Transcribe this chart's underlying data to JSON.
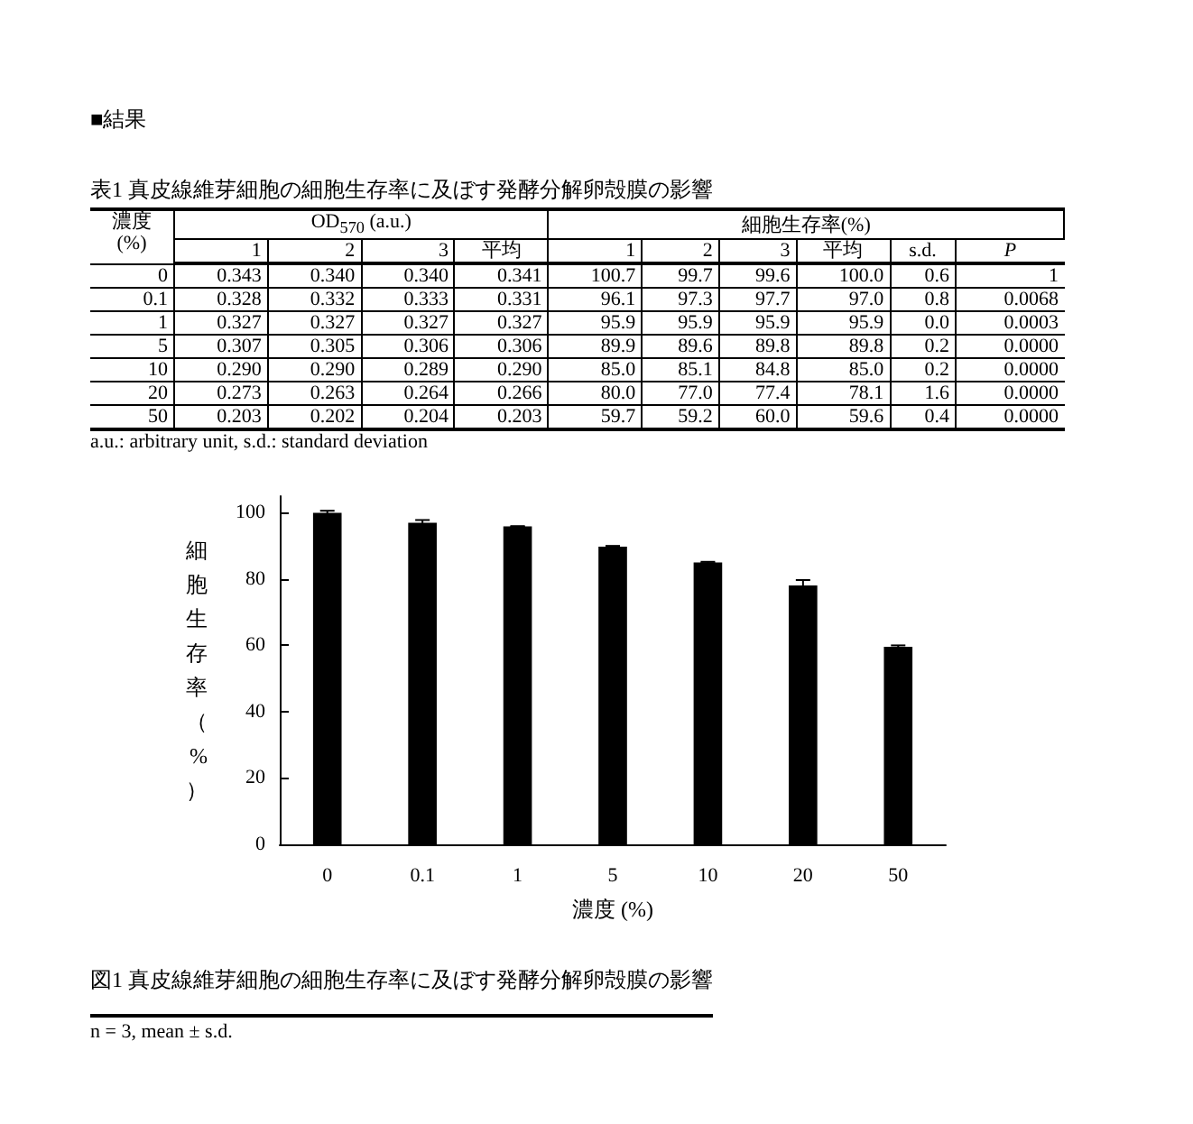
{
  "chart_data": [
    {
      "type": "other",
      "subtitle": "■結果",
      "title": "表1  真皮線維芽細胞の細胞生存率に及ぼす発酵分解卵殻膜の影響",
      "ylabel": "濃度\n(%)",
      "categories": [
        "1",
        "2",
        "3",
        "平均",
        "1",
        "2",
        "3",
        "平均",
        "s.d.",
        "P"
      ],
      "y_categories": [
        "0",
        "0.1",
        "1",
        "5",
        "10",
        "20",
        "50"
      ],
      "cell_labels": [
        [
          "0.343",
          "0.340",
          "0.340",
          "0.341",
          "100.7",
          "99.7",
          "99.6",
          "100.0",
          "0.6",
          "1"
        ],
        [
          "0.328",
          "0.332",
          "0.333",
          "0.331",
          "96.1",
          "97.3",
          "97.7",
          "97.0",
          "0.8",
          "0.0068"
        ],
        [
          "0.327",
          "0.327",
          "0.327",
          "0.327",
          "95.9",
          "95.9",
          "95.9",
          "95.9",
          "0.0",
          "0.0003"
        ],
        [
          "0.307",
          "0.305",
          "0.306",
          "0.306",
          "89.9",
          "89.6",
          "89.8",
          "89.8",
          "0.2",
          "0.0000"
        ],
        [
          "0.290",
          "0.290",
          "0.289",
          "0.290",
          "85.0",
          "85.1",
          "84.8",
          "85.0",
          "0.2",
          "0.0000"
        ],
        [
          "0.273",
          "0.263",
          "0.264",
          "0.266",
          "80.0",
          "77.0",
          "77.4",
          "78.1",
          "1.6",
          "0.0000"
        ],
        [
          "0.203",
          "0.202",
          "0.204",
          "0.203",
          "59.7",
          "59.2",
          "60.0",
          "59.6",
          "0.4",
          "0.0000"
        ]
      ],
      "annotations": [
        "OD$_{570}$ (a.u.)",
        "細胞生存率(%)",
        "a.u.: arbitrary unit, s.d.: standard deviation"
      ]
    },
    {
      "type": "bar",
      "title": "図1  真皮線維芽細胞の細胞生存率に及ぼす発酵分解卵殻膜の影響",
      "xlabel": "濃度 (%)",
      "ylabel": "細胞生存率（%）",
      "categories": [
        "0",
        "0.1",
        "1",
        "5",
        "10",
        "20",
        "50"
      ],
      "values": [
        100.0,
        97.0,
        95.9,
        89.8,
        85.0,
        78.1,
        59.6
      ],
      "errors": [
        0.6,
        0.8,
        0.0,
        0.2,
        0.2,
        1.6,
        0.4
      ],
      "color": "#000000",
      "ylim": [
        0,
        105
      ],
      "yticks": [
        0,
        20,
        40,
        60,
        80,
        100
      ],
      "grid": false,
      "annotations": [
        "n = 3, mean ± s.d."
      ]
    }
  ]
}
